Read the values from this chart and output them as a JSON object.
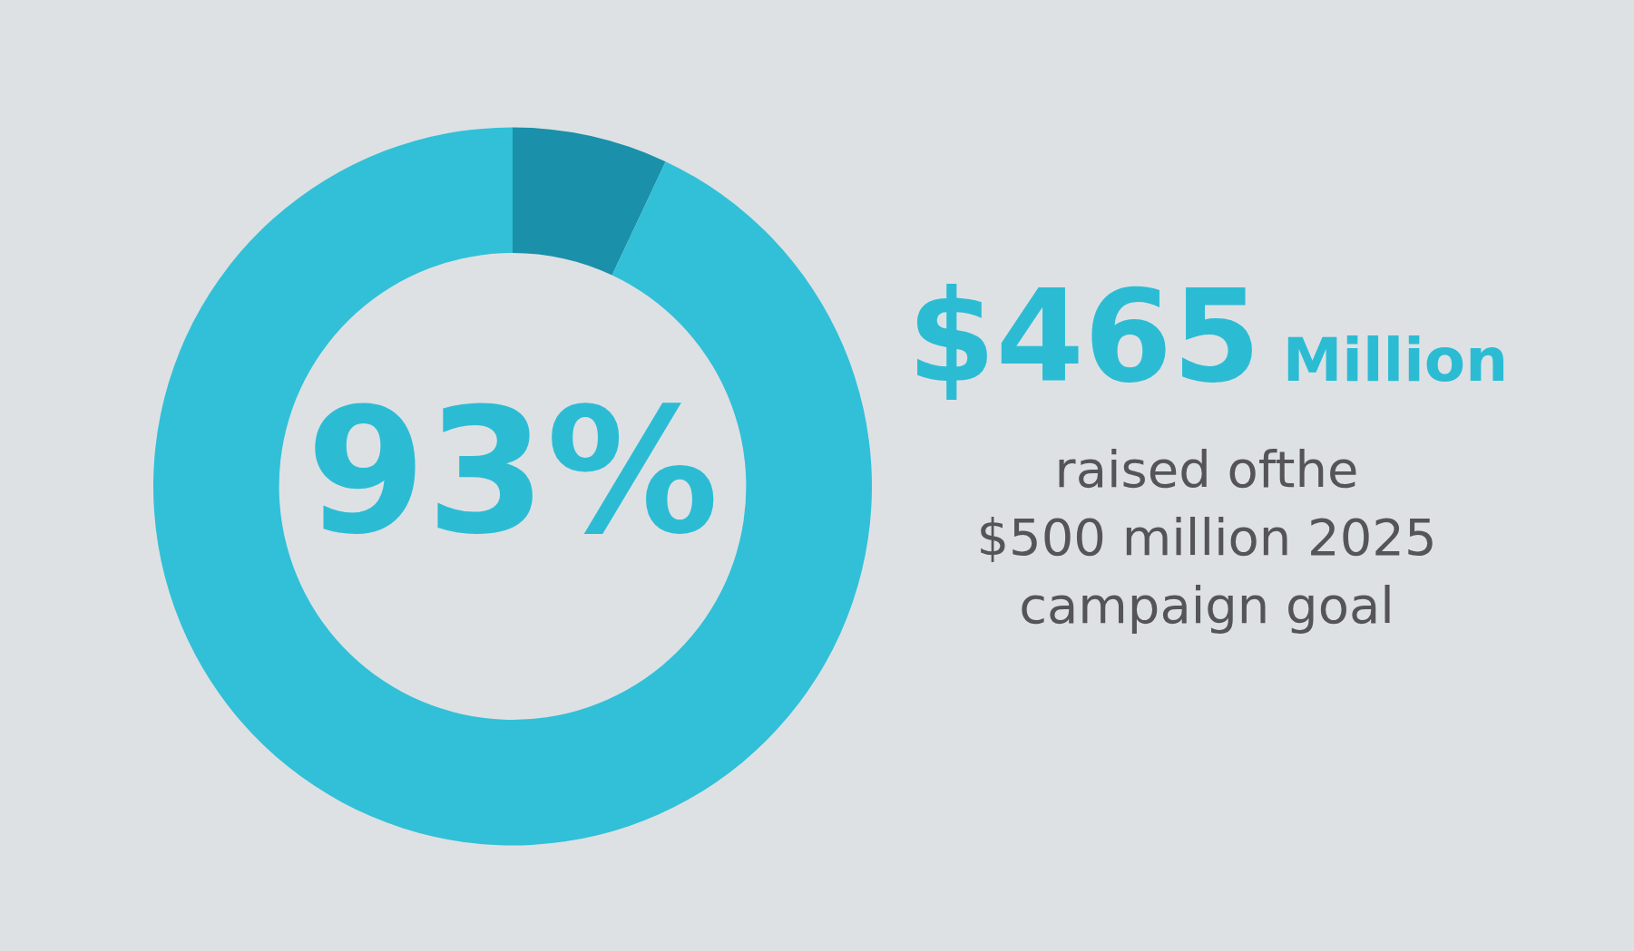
{
  "chart_data": {
    "type": "donut",
    "categories": [
      null,
      null
    ],
    "values": [
      7,
      93
    ],
    "colors": [
      "#1a90aa",
      "#31c0d7"
    ],
    "value_labels": [
      null,
      "93%"
    ],
    "legend": false,
    "annotations": [
      "$465 Million",
      "raised ofthe\n$500 million 2025\ncampaign goal"
    ]
  }
}
